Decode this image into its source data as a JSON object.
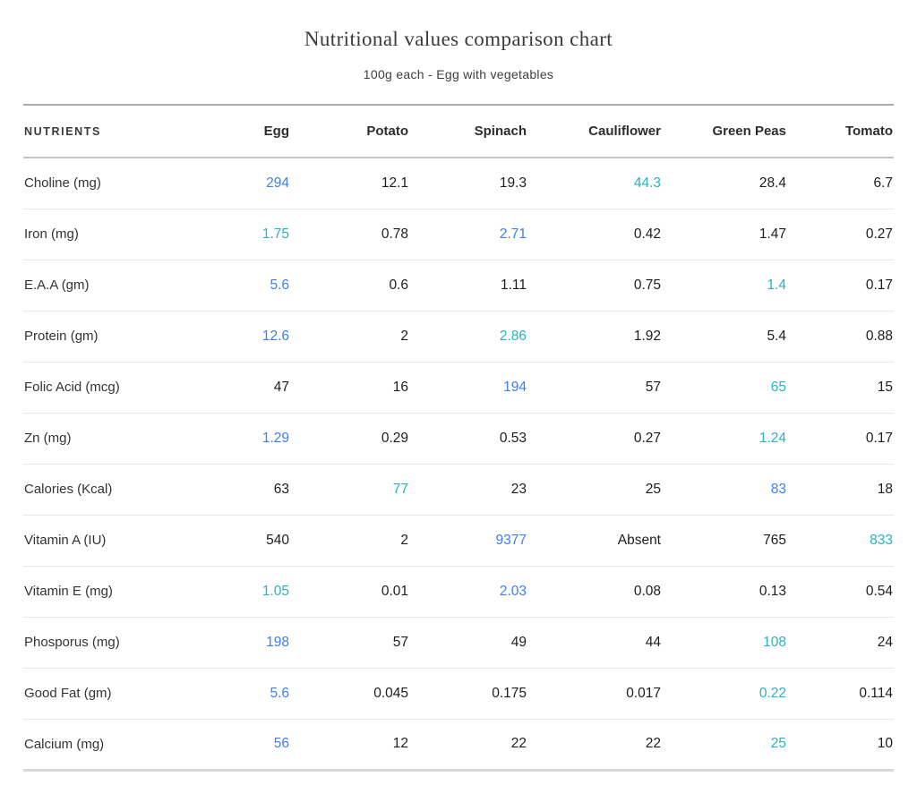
{
  "header": {
    "title": "Nutritional values comparison chart",
    "subtitle": "100g each - Egg with vegetables"
  },
  "colors": {
    "highlight_blue": "#3d7ef0",
    "highlight_teal": "#2ab2c4"
  },
  "chart_data": {
    "type": "table",
    "title": "Nutritional values comparison chart",
    "subtitle": "100g each - Egg with vegetables",
    "columns": [
      "NUTRIENTS",
      "Egg",
      "Potato",
      "Spinach",
      "Cauliflower",
      "Green Peas",
      "Tomato"
    ],
    "rows": [
      {
        "nutrient": "Choline (mg)",
        "values": [
          "294",
          "12.1",
          "19.3",
          "44.3",
          "28.4",
          "6.7"
        ],
        "colors": [
          "blue",
          null,
          null,
          "teal",
          null,
          null
        ]
      },
      {
        "nutrient": "Iron (mg)",
        "values": [
          "1.75",
          "0.78",
          "2.71",
          "0.42",
          "1.47",
          "0.27"
        ],
        "colors": [
          "teal",
          null,
          "blue",
          null,
          null,
          null
        ]
      },
      {
        "nutrient": "E.A.A (gm)",
        "values": [
          "5.6",
          "0.6",
          "1.11",
          "0.75",
          "1.4",
          "0.17"
        ],
        "colors": [
          "blue",
          null,
          null,
          null,
          "teal",
          null
        ]
      },
      {
        "nutrient": "Protein (gm)",
        "values": [
          "12.6",
          "2",
          "2.86",
          "1.92",
          "5.4",
          "0.88"
        ],
        "colors": [
          "blue",
          null,
          "teal",
          null,
          null,
          null
        ]
      },
      {
        "nutrient": "Folic Acid (mcg)",
        "values": [
          "47",
          "16",
          "194",
          "57",
          "65",
          "15"
        ],
        "colors": [
          null,
          null,
          "blue",
          null,
          "teal",
          null
        ]
      },
      {
        "nutrient": "Zn (mg)",
        "values": [
          "1.29",
          "0.29",
          "0.53",
          "0.27",
          "1.24",
          "0.17"
        ],
        "colors": [
          "blue",
          null,
          null,
          null,
          "teal",
          null
        ]
      },
      {
        "nutrient": "Calories (Kcal)",
        "values": [
          "63",
          "77",
          "23",
          "25",
          "83",
          "18"
        ],
        "colors": [
          null,
          "teal",
          null,
          null,
          "blue",
          null
        ]
      },
      {
        "nutrient": "Vitamin A (IU)",
        "values": [
          "540",
          "2",
          "9377",
          "Absent",
          "765",
          "833"
        ],
        "colors": [
          null,
          null,
          "blue",
          null,
          null,
          "teal"
        ]
      },
      {
        "nutrient": "Vitamin E (mg)",
        "values": [
          "1.05",
          "0.01",
          "2.03",
          "0.08",
          "0.13",
          "0.54"
        ],
        "colors": [
          "teal",
          null,
          "blue",
          null,
          null,
          null
        ]
      },
      {
        "nutrient": "Phosporus (mg)",
        "values": [
          "198",
          "57",
          "49",
          "44",
          "108",
          "24"
        ],
        "colors": [
          "blue",
          null,
          null,
          null,
          "teal",
          null
        ]
      },
      {
        "nutrient": "Good Fat (gm)",
        "values": [
          "5.6",
          "0.045",
          "0.175",
          "0.017",
          "0.22",
          "0.114"
        ],
        "colors": [
          "blue",
          null,
          null,
          null,
          "teal",
          null
        ]
      },
      {
        "nutrient": "Calcium (mg)",
        "values": [
          "56",
          "12",
          "22",
          "22",
          "25",
          "10"
        ],
        "colors": [
          "blue",
          null,
          null,
          null,
          "teal",
          null
        ]
      }
    ]
  }
}
